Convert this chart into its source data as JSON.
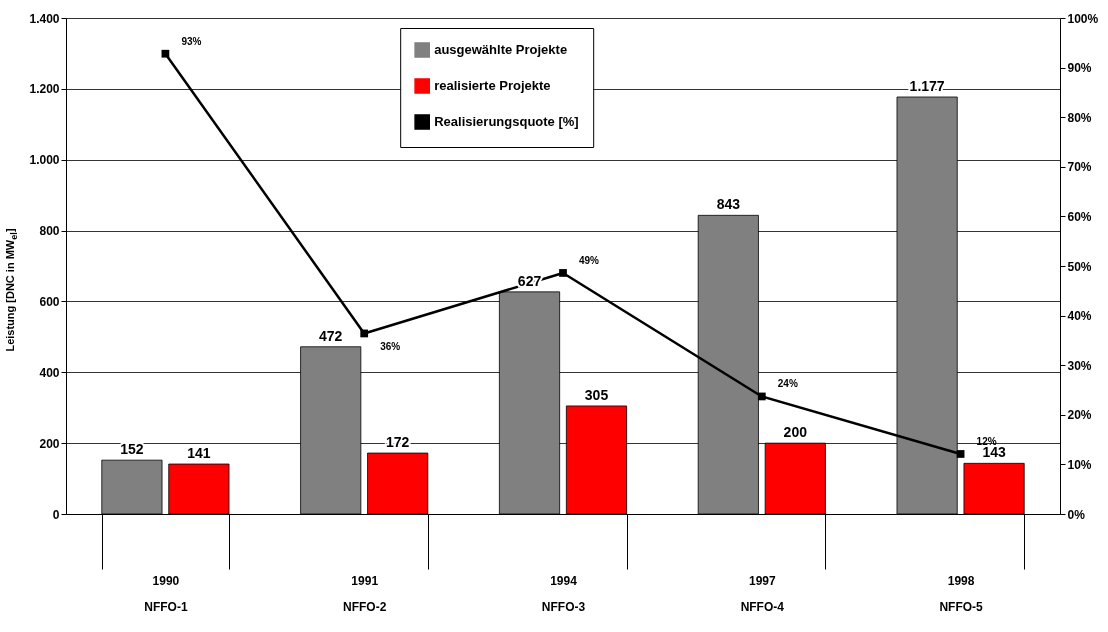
{
  "chart_data": {
    "type": "bar",
    "categories": [
      "1990\nNFFO-1",
      "1991\nNFFO-2",
      "1994\nNFFO-3",
      "1997\nNFFO-4",
      "1998\nNFFO-5"
    ],
    "ylabel": "Leistung [DNC in MW$_{el}$]",
    "ylim": [
      0,
      1400
    ],
    "yticks": [
      {
        "value": 0,
        "label": "0"
      },
      {
        "value": 200,
        "label": "200"
      },
      {
        "value": 400,
        "label": "400"
      },
      {
        "value": 600,
        "label": "600"
      },
      {
        "value": 800,
        "label": "800"
      },
      {
        "value": 1000,
        "label": "1.000"
      },
      {
        "value": 1200,
        "label": "1.200"
      },
      {
        "value": 1400,
        "label": "1.400"
      }
    ],
    "y2lim": [
      0,
      100
    ],
    "y2ticks": [
      {
        "value": 0,
        "label": "0%"
      },
      {
        "value": 10,
        "label": "10%"
      },
      {
        "value": 20,
        "label": "20%"
      },
      {
        "value": 30,
        "label": "30%"
      },
      {
        "value": 40,
        "label": "40%"
      },
      {
        "value": 50,
        "label": "50%"
      },
      {
        "value": 60,
        "label": "60%"
      },
      {
        "value": 70,
        "label": "70%"
      },
      {
        "value": 80,
        "label": "80%"
      },
      {
        "value": 90,
        "label": "90%"
      },
      {
        "value": 100,
        "label": "100%"
      }
    ],
    "grid": "y",
    "legend": "top",
    "series": [
      {
        "name": "ausgewählte Projekte",
        "color": "#808080",
        "values": [
          152,
          472,
          627,
          843,
          1177
        ],
        "value_labels": [
          "152",
          "472",
          "627",
          "843",
          "1.177"
        ]
      },
      {
        "name": "realisierte Projekte",
        "color": "#ff0000",
        "values": [
          141,
          172,
          305,
          200,
          143
        ],
        "value_labels": [
          "141",
          "172",
          "305",
          "200",
          "143"
        ]
      },
      {
        "name": "Realisierungsquote [%]",
        "type": "line",
        "axis": "y2",
        "marker": "square",
        "color": "#000000",
        "values": [
          92.8,
          36.4,
          48.6,
          23.7,
          12.1
        ],
        "value_labels": [
          "93%",
          "36%",
          "49%",
          "24%",
          "12%"
        ]
      }
    ]
  }
}
